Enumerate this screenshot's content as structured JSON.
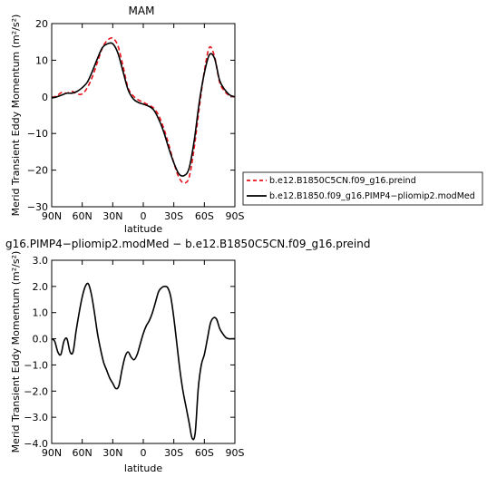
{
  "chart_data": [
    {
      "type": "line",
      "title": "MAM",
      "xlabel": "latitude",
      "ylabel": "Merid Transient Eddy Momentum (m²/s²)",
      "xlim": [
        90,
        -90
      ],
      "ylim": [
        -30,
        20
      ],
      "x_ticks": [
        90,
        60,
        30,
        0,
        -30,
        -60,
        -90
      ],
      "x_tick_labels": [
        "90N",
        "60N",
        "30N",
        "0",
        "30S",
        "60S",
        "90S"
      ],
      "y_ticks": [
        -30,
        -20,
        -10,
        0,
        10,
        20
      ],
      "y_tick_labels": [
        "−30",
        "−20",
        "−10",
        "0",
        "10",
        "20"
      ],
      "legend_position": "right",
      "series": [
        {
          "name": "b.e12.B1850C5CN.f09_g16.preind",
          "color": "#e8141c",
          "style": "dashed",
          "x": [
            90,
            85,
            80,
            75,
            70,
            65,
            60,
            55,
            50,
            45,
            40,
            35,
            30,
            25,
            20,
            15,
            10,
            5,
            0,
            -5,
            -10,
            -15,
            -20,
            -25,
            -30,
            -35,
            -40,
            -45,
            -50,
            -55,
            -60,
            -65,
            -70,
            -75,
            -80,
            -85,
            -90
          ],
          "y": [
            -0.3,
            0.3,
            1.2,
            1.0,
            1.5,
            0.8,
            0.8,
            2.5,
            5.5,
            9.5,
            13.5,
            15.5,
            16.0,
            14.0,
            8.5,
            2.5,
            0.3,
            -0.8,
            -1.5,
            -2.2,
            -3.0,
            -5.0,
            -8.5,
            -13.0,
            -18.0,
            -22.0,
            -23.5,
            -22.0,
            -14.0,
            -3.0,
            7.0,
            13.5,
            11.0,
            4.0,
            1.5,
            0.3,
            0.0
          ]
        },
        {
          "name": "b.e12.B1850.f09_g16.PIMP4−pliomip2.modMed",
          "color": "#000000",
          "style": "solid",
          "x": [
            90,
            85,
            80,
            75,
            70,
            65,
            60,
            55,
            50,
            45,
            40,
            35,
            30,
            25,
            20,
            15,
            10,
            5,
            0,
            -5,
            -10,
            -15,
            -20,
            -25,
            -30,
            -35,
            -40,
            -45,
            -50,
            -55,
            -60,
            -65,
            -70,
            -75,
            -80,
            -85,
            -90
          ],
          "y": [
            -0.3,
            0.0,
            0.5,
            1.0,
            1.0,
            1.5,
            2.5,
            4.0,
            7.0,
            10.5,
            13.5,
            14.5,
            14.5,
            12.0,
            7.0,
            2.0,
            -0.5,
            -1.5,
            -2.0,
            -2.5,
            -3.5,
            -6.0,
            -9.5,
            -14.0,
            -18.0,
            -21.0,
            -21.5,
            -19.5,
            -12.0,
            -1.5,
            6.5,
            11.5,
            10.5,
            4.5,
            2.0,
            0.5,
            0.0
          ]
        }
      ]
    },
    {
      "type": "line",
      "title": "g16.PIMP4−pliomip2.modMed − b.e12.B1850C5CN.f09_g16.preind",
      "xlabel": "latitude",
      "ylabel": "Merid Transient Eddy Momentum (m²/s²)",
      "xlim": [
        90,
        -90
      ],
      "ylim": [
        -4.0,
        3.0
      ],
      "x_ticks": [
        90,
        60,
        30,
        0,
        -30,
        -60,
        -90
      ],
      "x_tick_labels": [
        "90N",
        "60N",
        "30N",
        "0",
        "30S",
        "60S",
        "90S"
      ],
      "y_ticks": [
        -4.0,
        -3.0,
        -2.0,
        -1.0,
        0.0,
        1.0,
        2.0,
        3.0
      ],
      "y_tick_labels": [
        "−4.0",
        "−3.0",
        "−2.0",
        "−1.0",
        "0.0",
        "1.0",
        "2.0",
        "3.0"
      ],
      "series": [
        {
          "color": "#000000",
          "style": "solid",
          "x": [
            90,
            87,
            84,
            81,
            78,
            75,
            72,
            69,
            66,
            63,
            60,
            57,
            54,
            51,
            48,
            45,
            42,
            39,
            36,
            33,
            30,
            27,
            24,
            21,
            18,
            15,
            12,
            9,
            6,
            3,
            0,
            -3,
            -6,
            -9,
            -12,
            -15,
            -18,
            -21,
            -24,
            -27,
            -30,
            -33,
            -36,
            -39,
            -42,
            -45,
            -48,
            -51,
            -54,
            -57,
            -60,
            -63,
            -66,
            -69,
            -72,
            -75,
            -78,
            -81,
            -84,
            -87,
            -90
          ],
          "y": [
            0.0,
            -0.1,
            -0.5,
            -0.6,
            -0.1,
            0.0,
            -0.5,
            -0.5,
            0.3,
            1.0,
            1.6,
            2.0,
            2.1,
            1.7,
            1.0,
            0.2,
            -0.4,
            -0.9,
            -1.2,
            -1.5,
            -1.7,
            -1.9,
            -1.8,
            -1.2,
            -0.7,
            -0.5,
            -0.7,
            -0.8,
            -0.6,
            -0.2,
            0.2,
            0.5,
            0.7,
            1.0,
            1.4,
            1.8,
            1.95,
            2.0,
            1.95,
            1.6,
            0.8,
            -0.2,
            -1.2,
            -2.0,
            -2.6,
            -3.2,
            -3.8,
            -3.6,
            -1.9,
            -1.0,
            -0.6,
            0.0,
            0.6,
            0.8,
            0.75,
            0.4,
            0.2,
            0.05,
            0.0,
            0.0,
            0.0
          ]
        }
      ]
    }
  ]
}
